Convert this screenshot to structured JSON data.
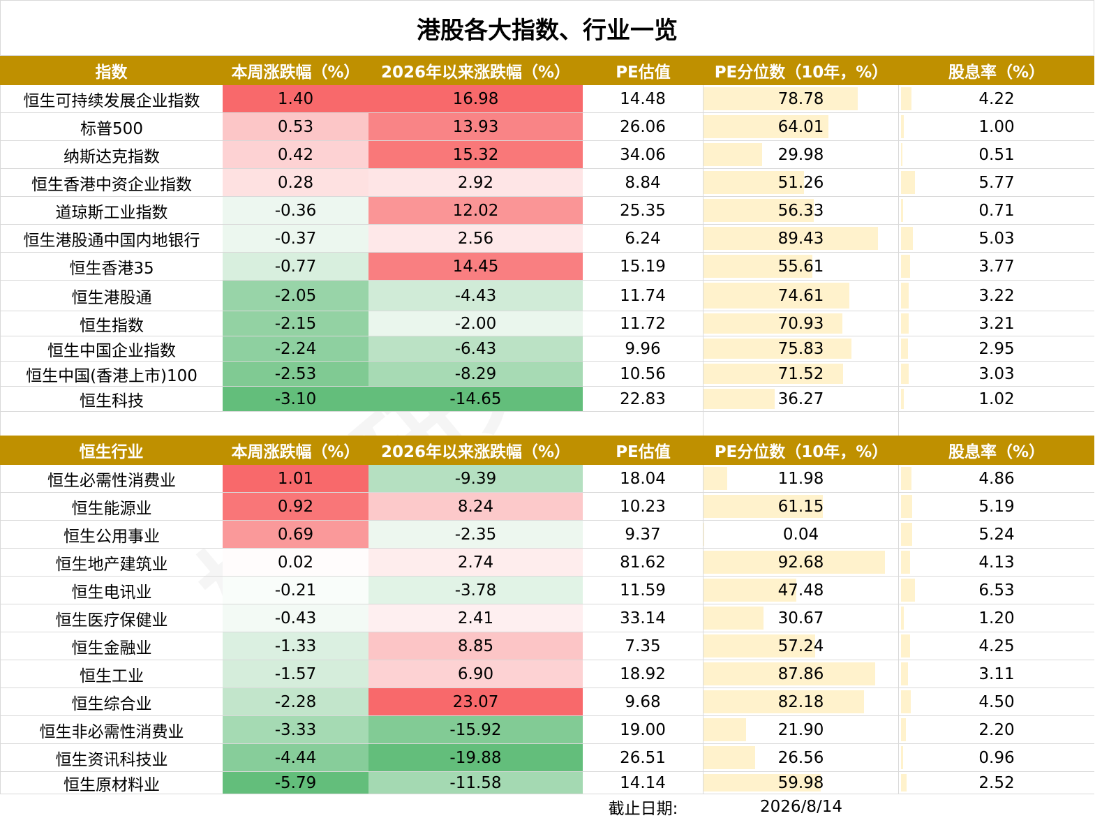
{
  "title": "港股各大指数、行业一览",
  "colors": {
    "header_bg": "#bf9000",
    "bar": "#fff2cc",
    "pos_max": "#f8696b",
    "neg_max": "#63be7b"
  },
  "table1": {
    "headers": [
      "指数",
      "本周涨跌幅（%）",
      "2026年以来涨跌幅（%）",
      "PE估值",
      "PE分位数（10年，%）",
      "股息率（%）"
    ],
    "rows": [
      {
        "name": "恒生可持续发展企业指数",
        "week": "1.40",
        "ytd": "16.98",
        "pe": "14.48",
        "pct": "78.78",
        "div": "4.22"
      },
      {
        "name": "标普500",
        "week": "0.53",
        "ytd": "13.93",
        "pe": "26.06",
        "pct": "64.01",
        "div": "1.00"
      },
      {
        "name": "纳斯达克指数",
        "week": "0.42",
        "ytd": "15.32",
        "pe": "34.06",
        "pct": "29.98",
        "div": "0.51"
      },
      {
        "name": "恒生香港中资企业指数",
        "week": "0.28",
        "ytd": "2.92",
        "pe": "8.84",
        "pct": "51.26",
        "div": "5.77"
      },
      {
        "name": "道琼斯工业指数",
        "week": "-0.36",
        "ytd": "12.02",
        "pe": "25.35",
        "pct": "56.33",
        "div": "0.71"
      },
      {
        "name": "恒生港股通中国内地银行",
        "week": "-0.37",
        "ytd": "2.56",
        "pe": "6.24",
        "pct": "89.43",
        "div": "5.03"
      },
      {
        "name": "恒生香港35",
        "week": "-0.77",
        "ytd": "14.45",
        "pe": "15.19",
        "pct": "55.61",
        "div": "3.77"
      },
      {
        "name": "恒生港股通",
        "week": "-2.05",
        "ytd": "-4.43",
        "pe": "11.74",
        "pct": "74.61",
        "div": "3.22"
      },
      {
        "name": "恒生指数",
        "week": "-2.15",
        "ytd": "-2.00",
        "pe": "11.72",
        "pct": "70.93",
        "div": "3.21"
      },
      {
        "name": "恒生中国企业指数",
        "week": "-2.24",
        "ytd": "-6.43",
        "pe": "9.96",
        "pct": "75.83",
        "div": "2.95"
      },
      {
        "name": "恒生中国(香港上市)100",
        "week": "-2.53",
        "ytd": "-8.29",
        "pe": "10.56",
        "pct": "71.52",
        "div": "3.03"
      },
      {
        "name": "恒生科技",
        "week": "-3.10",
        "ytd": "-14.65",
        "pe": "22.83",
        "pct": "36.27",
        "div": "1.02"
      }
    ]
  },
  "table2": {
    "headers": [
      "恒生行业",
      "本周涨跌幅（%）",
      "2026年以来涨跌幅（%）",
      "PE估值",
      "PE分位数（10年，%）",
      "股息率（%）"
    ],
    "rows": [
      {
        "name": "恒生必需性消费业",
        "week": "1.01",
        "ytd": "-9.39",
        "pe": "18.04",
        "pct": "11.98",
        "div": "4.86"
      },
      {
        "name": "恒生能源业",
        "week": "0.92",
        "ytd": "8.24",
        "pe": "10.23",
        "pct": "61.15",
        "div": "5.19"
      },
      {
        "name": "恒生公用事业",
        "week": "0.69",
        "ytd": "-2.35",
        "pe": "9.37",
        "pct": "0.04",
        "div": "5.24"
      },
      {
        "name": "恒生地产建筑业",
        "week": "0.02",
        "ytd": "2.74",
        "pe": "81.62",
        "pct": "92.68",
        "div": "4.13"
      },
      {
        "name": "恒生电讯业",
        "week": "-0.21",
        "ytd": "-3.78",
        "pe": "11.59",
        "pct": "47.48",
        "div": "6.53"
      },
      {
        "name": "恒生医疗保健业",
        "week": "-0.43",
        "ytd": "2.41",
        "pe": "33.14",
        "pct": "30.67",
        "div": "1.20"
      },
      {
        "name": "恒生金融业",
        "week": "-1.33",
        "ytd": "8.85",
        "pe": "7.35",
        "pct": "57.24",
        "div": "4.25"
      },
      {
        "name": "恒生工业",
        "week": "-1.57",
        "ytd": "6.90",
        "pe": "18.92",
        "pct": "87.86",
        "div": "3.11"
      },
      {
        "name": "恒生综合业",
        "week": "-2.28",
        "ytd": "23.07",
        "pe": "9.68",
        "pct": "82.18",
        "div": "4.50"
      },
      {
        "name": "恒生非必需性消费业",
        "week": "-3.33",
        "ytd": "-15.92",
        "pe": "19.00",
        "pct": "21.90",
        "div": "2.20"
      },
      {
        "name": "恒生资讯科技业",
        "week": "-4.44",
        "ytd": "-19.88",
        "pe": "26.51",
        "pct": "26.56",
        "div": "0.96"
      },
      {
        "name": "恒生原材料业",
        "week": "-5.79",
        "ytd": "-11.58",
        "pe": "14.14",
        "pct": "59.98",
        "div": "2.52"
      }
    ]
  },
  "footer": {
    "label": "截止日期:",
    "date": "2026/8/14"
  },
  "watermark": "格上研究"
}
